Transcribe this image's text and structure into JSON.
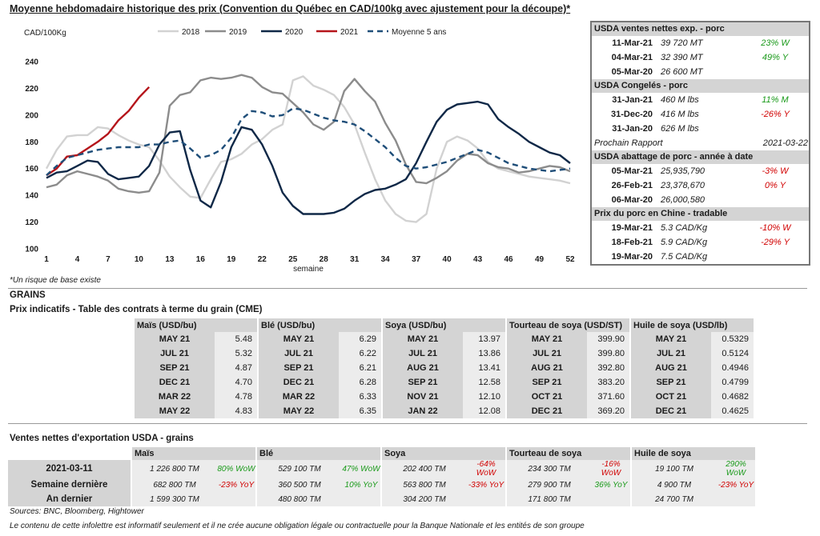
{
  "chart": {
    "title": "Moyenne hebdomadaire historique des prix (Convention du Québec en CAD/100kg avec ajustement pour la découpe)*",
    "footnote": "*Un risque de base existe"
  },
  "chart_data": {
    "type": "line",
    "ylabel": "CAD/100Kg",
    "xlabel": "semaine",
    "ylim": [
      100,
      240
    ],
    "xlim": [
      1,
      52
    ],
    "yticks": [
      100,
      120,
      140,
      160,
      180,
      200,
      220,
      240
    ],
    "xticks": [
      1,
      4,
      7,
      10,
      13,
      16,
      19,
      22,
      25,
      28,
      31,
      34,
      37,
      40,
      43,
      46,
      49,
      52
    ],
    "legend_position": "top",
    "grid": false,
    "series": [
      {
        "name": "2018",
        "color": "#d2d2d2",
        "dash": false,
        "x": [
          1,
          2,
          3,
          4,
          5,
          6,
          7,
          8,
          9,
          10,
          11,
          12,
          13,
          14,
          15,
          16,
          17,
          18,
          19,
          20,
          21,
          22,
          23,
          24,
          25,
          26,
          27,
          28,
          29,
          30,
          31,
          32,
          33,
          34,
          35,
          36,
          37,
          38,
          39,
          40,
          41,
          42,
          43,
          44,
          45,
          46,
          47,
          48,
          49,
          50,
          51,
          52
        ],
        "values": [
          160,
          174,
          184,
          185,
          185,
          191,
          190,
          185,
          181,
          178,
          176,
          166,
          154,
          146,
          139,
          138,
          152,
          165,
          167,
          171,
          178,
          182,
          189,
          193,
          226,
          229,
          222,
          219,
          215,
          206,
          193,
          172,
          152,
          136,
          126,
          121,
          120,
          126,
          160,
          180,
          184,
          181,
          175,
          165,
          160,
          158,
          156,
          154,
          153,
          152,
          151,
          149
        ]
      },
      {
        "name": "2019",
        "color": "#8c8c8c",
        "dash": false,
        "x": [
          1,
          2,
          3,
          4,
          5,
          6,
          7,
          8,
          9,
          10,
          11,
          12,
          13,
          14,
          15,
          16,
          17,
          18,
          19,
          20,
          21,
          22,
          23,
          24,
          25,
          26,
          27,
          28,
          29,
          30,
          31,
          32,
          33,
          34,
          35,
          36,
          37,
          38,
          39,
          40,
          41,
          42,
          43,
          44,
          45,
          46,
          47,
          48,
          49,
          50,
          51,
          52
        ],
        "values": [
          146,
          148,
          155,
          158,
          156,
          154,
          151,
          145,
          143,
          142,
          143,
          157,
          207,
          215,
          217,
          226,
          228,
          227,
          228,
          230,
          228,
          221,
          217,
          216,
          209,
          202,
          193,
          189,
          195,
          218,
          227,
          218,
          210,
          194,
          181,
          163,
          150,
          149,
          153,
          158,
          166,
          171,
          170,
          164,
          161,
          160,
          157,
          158,
          160,
          162,
          161,
          158
        ]
      },
      {
        "name": "2020",
        "color": "#0f2847",
        "dash": false,
        "x": [
          1,
          2,
          3,
          4,
          5,
          6,
          7,
          8,
          9,
          10,
          11,
          12,
          13,
          14,
          15,
          16,
          17,
          18,
          19,
          20,
          21,
          22,
          23,
          24,
          25,
          26,
          27,
          28,
          29,
          30,
          31,
          32,
          33,
          34,
          35,
          36,
          37,
          38,
          39,
          40,
          41,
          42,
          43,
          44,
          45,
          46,
          47,
          48,
          49,
          50,
          51,
          52
        ],
        "values": [
          153,
          157,
          158,
          162,
          166,
          165,
          156,
          152,
          153,
          154,
          162,
          178,
          187,
          188,
          159,
          136,
          131,
          150,
          176,
          191,
          189,
          178,
          162,
          142,
          132,
          126,
          126,
          126,
          127,
          130,
          136,
          141,
          144,
          145,
          148,
          152,
          164,
          180,
          195,
          204,
          208,
          209,
          210,
          208,
          197,
          191,
          186,
          180,
          176,
          172,
          170,
          164
        ]
      },
      {
        "name": "2021",
        "color": "#b5141a",
        "dash": false,
        "x": [
          1,
          2,
          3,
          4,
          5,
          6,
          7,
          8,
          9,
          10,
          11
        ],
        "values": [
          155,
          160,
          169,
          170,
          175,
          180,
          186,
          196,
          203,
          213,
          221
        ]
      },
      {
        "name": "Moyenne 5 ans",
        "color": "#1f4e79",
        "dash": true,
        "x": [
          1,
          2,
          3,
          4,
          5,
          6,
          7,
          8,
          9,
          10,
          11,
          12,
          13,
          14,
          15,
          16,
          17,
          18,
          19,
          20,
          21,
          22,
          23,
          24,
          25,
          26,
          27,
          28,
          29,
          30,
          31,
          32,
          33,
          34,
          35,
          36,
          37,
          38,
          39,
          40,
          41,
          42,
          43,
          44,
          45,
          46,
          47,
          48,
          49,
          50,
          51,
          52
        ],
        "values": [
          155,
          162,
          168,
          170,
          172,
          174,
          175,
          176,
          176,
          176,
          178,
          178,
          180,
          181,
          175,
          168,
          170,
          174,
          183,
          197,
          203,
          202,
          199,
          200,
          205,
          204,
          201,
          198,
          196,
          195,
          193,
          188,
          182,
          176,
          168,
          162,
          160,
          161,
          163,
          165,
          168,
          171,
          174,
          172,
          168,
          164,
          162,
          160,
          159,
          158,
          159,
          160
        ]
      }
    ]
  },
  "sidebar": [
    {
      "header": "USDA ventes nettes exp. - porc",
      "rows": [
        {
          "date": "11-Mar-21",
          "value": "39 720  MT",
          "change": "23% W",
          "tone": "pos"
        },
        {
          "date": "04-Mar-21",
          "value": "32 390  MT",
          "change": "49% Y",
          "tone": "pos"
        },
        {
          "date": "05-Mar-20",
          "value": "26 600  MT",
          "change": "",
          "tone": ""
        }
      ]
    },
    {
      "header": "USDA Congelés - porc",
      "rows": [
        {
          "date": "31-Jan-21",
          "value": "460 M lbs",
          "change": "11% M",
          "tone": "pos"
        },
        {
          "date": "31-Dec-20",
          "value": "416 M lbs",
          "change": "-26% Y",
          "tone": "neg"
        },
        {
          "date": "31-Jan-20",
          "value": "626 M lbs",
          "change": "",
          "tone": ""
        }
      ],
      "note": {
        "label": "Prochain Rapport",
        "value": "2021-03-22"
      }
    },
    {
      "header": "USDA abattage de porc - année à date",
      "rows": [
        {
          "date": "05-Mar-21",
          "value": "25,935,790",
          "change": "-3% W",
          "tone": "neg"
        },
        {
          "date": "26-Feb-21",
          "value": "23,378,670",
          "change": "0% Y",
          "tone": "neg"
        },
        {
          "date": "06-Mar-20",
          "value": "26,000,580",
          "change": "",
          "tone": ""
        }
      ]
    },
    {
      "header": "Prix du porc en Chine - tradable",
      "rows": [
        {
          "date": "19-Mar-21",
          "value": "5.3 CAD/Kg",
          "change": "-10% W",
          "tone": "neg"
        },
        {
          "date": "18-Feb-21",
          "value": "5.9 CAD/Kg",
          "change": "-29% Y",
          "tone": "neg"
        },
        {
          "date": "19-Mar-20",
          "value": "7.5 CAD/Kg",
          "change": "",
          "tone": ""
        }
      ]
    }
  ],
  "grains": {
    "section_title": "GRAINS",
    "futures_title": "Prix indicatifs - Table des contrats à terme du grain (CME)",
    "futures": [
      {
        "header": "Maïs (USD/bu)",
        "rows": [
          [
            "MAY 21",
            "5.48"
          ],
          [
            "JUL 21",
            "5.32"
          ],
          [
            "SEP 21",
            "4.87"
          ],
          [
            "DEC 21",
            "4.70"
          ],
          [
            "MAR 22",
            "4.78"
          ],
          [
            "MAY 22",
            "4.83"
          ]
        ]
      },
      {
        "header": "Blé (USD/bu)",
        "rows": [
          [
            "MAY 21",
            "6.29"
          ],
          [
            "JUL 21",
            "6.22"
          ],
          [
            "SEP 21",
            "6.21"
          ],
          [
            "DEC 21",
            "6.28"
          ],
          [
            "MAR 22",
            "6.33"
          ],
          [
            "MAY 22",
            "6.35"
          ]
        ]
      },
      {
        "header": "Soya (USD/bu)",
        "rows": [
          [
            "MAY 21",
            "13.97"
          ],
          [
            "JUL 21",
            "13.86"
          ],
          [
            "AUG 21",
            "13.41"
          ],
          [
            "SEP 21",
            "12.58"
          ],
          [
            "NOV 21",
            "12.10"
          ],
          [
            "JAN 22",
            "12.08"
          ]
        ]
      },
      {
        "header": "Tourteau de soya (USD/ST)",
        "rows": [
          [
            "MAY 21",
            "399.90"
          ],
          [
            "JUL 21",
            "399.80"
          ],
          [
            "AUG 21",
            "392.80"
          ],
          [
            "SEP 21",
            "383.20"
          ],
          [
            "OCT 21",
            "371.60"
          ],
          [
            "DEC 21",
            "369.20"
          ]
        ]
      },
      {
        "header": "Huile de soya (USD/lb)",
        "rows": [
          [
            "MAY 21",
            "0.5329"
          ],
          [
            "JUL 21",
            "0.5124"
          ],
          [
            "AUG 21",
            "0.4946"
          ],
          [
            "SEP 21",
            "0.4799"
          ],
          [
            "OCT 21",
            "0.4682"
          ],
          [
            "DEC 21",
            "0.4625"
          ]
        ]
      }
    ],
    "exports_title": "Ventes nettes d'exportation USDA - grains",
    "exports_headers": [
      "Maïs",
      "Blé",
      "Soya",
      "Tourteau de soya",
      "Huile de soya"
    ],
    "exports_rows": [
      {
        "label": "2021-03-11",
        "cells": [
          {
            "v": "1 226 800 TM",
            "c": "80% WoW",
            "tone": "pos"
          },
          {
            "v": "529 100 TM",
            "c": "47% WoW",
            "tone": "pos"
          },
          {
            "v": "202 400 TM",
            "c": "-64% WoW",
            "tone": "neg"
          },
          {
            "v": "234 300 TM",
            "c": "-16% WoW",
            "tone": "neg"
          },
          {
            "v": "19 100 TM",
            "c": "290% WoW",
            "tone": "pos"
          }
        ]
      },
      {
        "label": "Semaine dernière",
        "cells": [
          {
            "v": "682 800 TM",
            "c": "-23% YoY",
            "tone": "neg"
          },
          {
            "v": "360 500 TM",
            "c": "10% YoY",
            "tone": "pos"
          },
          {
            "v": "563 800 TM",
            "c": "-33% YoY",
            "tone": "neg"
          },
          {
            "v": "279 900 TM",
            "c": "36% YoY",
            "tone": "pos"
          },
          {
            "v": "4 900 TM",
            "c": "-23% YoY",
            "tone": "neg"
          }
        ]
      },
      {
        "label": "An dernier",
        "cells": [
          {
            "v": "1 599 300 TM",
            "c": "",
            "tone": ""
          },
          {
            "v": "480 800 TM",
            "c": "",
            "tone": ""
          },
          {
            "v": "304 200 TM",
            "c": "",
            "tone": ""
          },
          {
            "v": "171 800 TM",
            "c": "",
            "tone": ""
          },
          {
            "v": "24 700 TM",
            "c": "",
            "tone": ""
          }
        ]
      }
    ]
  },
  "footer": {
    "sources": "Sources: BNC, Bloomberg, Hightower",
    "disclaimer": "Le contenu de cette infolettre est informatif seulement et il ne crée aucune obligation légale ou contractuelle pour la Banque Nationale et les entités de son groupe"
  }
}
